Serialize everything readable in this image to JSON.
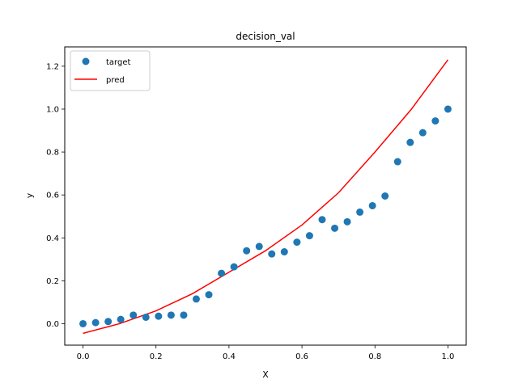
{
  "chart_data": {
    "type": "scatter",
    "title": "decision_val",
    "xlabel": "X",
    "ylabel": "y",
    "xlim": [
      -0.05,
      1.05
    ],
    "ylim": [
      -0.1,
      1.29
    ],
    "xticks": [
      "0.0",
      "0.2",
      "0.4",
      "0.6",
      "0.8",
      "1.0"
    ],
    "yticks": [
      "0.0",
      "0.2",
      "0.4",
      "0.6",
      "0.8",
      "1.0",
      "1.2"
    ],
    "grid": false,
    "legend_position": "top-left",
    "series": [
      {
        "name": "target",
        "kind": "scatter",
        "color": "#1f77b4",
        "x": [
          0.0,
          0.0345,
          0.069,
          0.1034,
          0.1379,
          0.1724,
          0.2069,
          0.2414,
          0.2759,
          0.3103,
          0.3448,
          0.3793,
          0.4138,
          0.4483,
          0.4828,
          0.5172,
          0.5517,
          0.5862,
          0.6207,
          0.6552,
          0.6897,
          0.7241,
          0.7586,
          0.7931,
          0.8276,
          0.8621,
          0.8966,
          0.931,
          0.9655,
          1.0
        ],
        "y": [
          0.0,
          0.005,
          0.01,
          0.02,
          0.04,
          0.03,
          0.035,
          0.04,
          0.04,
          0.115,
          0.135,
          0.235,
          0.265,
          0.34,
          0.36,
          0.325,
          0.335,
          0.38,
          0.41,
          0.485,
          0.445,
          0.475,
          0.52,
          0.55,
          0.595,
          0.755,
          0.845,
          0.89,
          0.945,
          1.0
        ]
      },
      {
        "name": "pred",
        "kind": "line",
        "color": "#ff0000",
        "x": [
          0.0,
          0.1,
          0.2,
          0.3,
          0.4,
          0.5,
          0.6,
          0.7,
          0.8,
          0.9,
          1.0
        ],
        "y": [
          -0.045,
          0.0,
          0.06,
          0.14,
          0.24,
          0.34,
          0.46,
          0.61,
          0.8,
          1.0,
          1.23
        ]
      }
    ]
  }
}
